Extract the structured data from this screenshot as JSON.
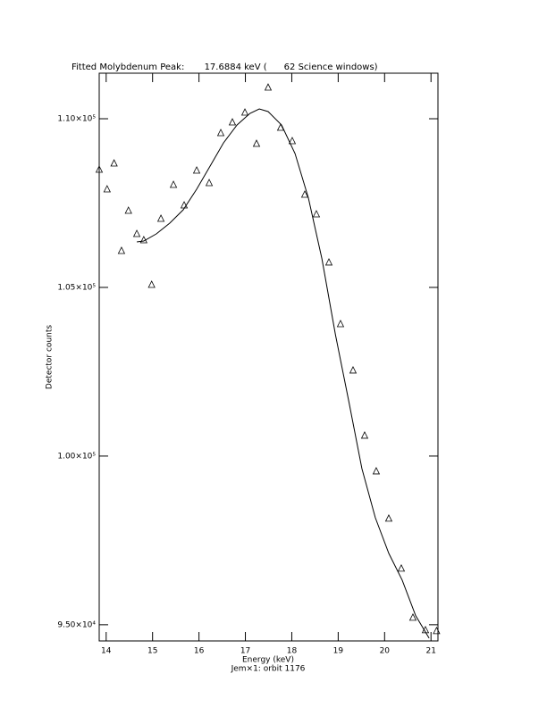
{
  "chart_data": {
    "type": "scatter",
    "title": "Fitted Molybdenum Peak:       17.6884 keV (      62 Science windows)",
    "x_label": "Energy (keV)",
    "subtitle": "Jem×1: orbit 1176",
    "y_label": "Detector counts",
    "xlim": [
      13.85,
      21.15
    ],
    "ylim": [
      94520,
      111350
    ],
    "xticks": [
      14,
      15,
      16,
      17,
      18,
      19,
      20,
      21
    ],
    "yticks": [
      {
        "value": 95000,
        "label": "9.50×10⁴"
      },
      {
        "value": 100000,
        "label": "1.00×10⁵"
      },
      {
        "value": 105000,
        "label": "1.05×10⁵"
      },
      {
        "value": 110000,
        "label": "1.10×10⁵"
      }
    ],
    "color": "#000000",
    "points": {
      "x": [
        13.85,
        14.02,
        14.17,
        14.33,
        14.48,
        14.66,
        14.81,
        14.98,
        15.18,
        15.45,
        15.68,
        15.95,
        16.22,
        16.47,
        16.72,
        16.99,
        17.24,
        17.49,
        17.76,
        18.01,
        18.28,
        18.53,
        18.8,
        19.05,
        19.32,
        19.57,
        19.82,
        20.09,
        20.36,
        20.61,
        20.88,
        21.12
      ],
      "values": [
        108492,
        107910,
        108677,
        106085,
        107275,
        106587,
        106402,
        105079,
        107037,
        108042,
        107434,
        108466,
        108095,
        109577,
        109894,
        110185,
        109259,
        110926,
        109735,
        109339,
        107751,
        107169,
        105741,
        103915,
        102540,
        100608,
        99550,
        98148,
        96667,
        95212,
        94841,
        94815
      ]
    },
    "fit": {
      "x": [
        14.66,
        14.81,
        15.08,
        15.37,
        15.66,
        15.95,
        16.24,
        16.53,
        16.82,
        17.1,
        17.3,
        17.49,
        17.78,
        18.07,
        18.36,
        18.65,
        18.94,
        19.23,
        19.51,
        19.8,
        20.09,
        20.38,
        20.67,
        20.96
      ],
      "values": [
        106349,
        106376,
        106587,
        106905,
        107302,
        107910,
        108598,
        109286,
        109815,
        110159,
        110291,
        110212,
        109815,
        108968,
        107646,
        105847,
        103598,
        101614,
        99630,
        98175,
        97116,
        96323,
        95265,
        94603
      ]
    }
  }
}
